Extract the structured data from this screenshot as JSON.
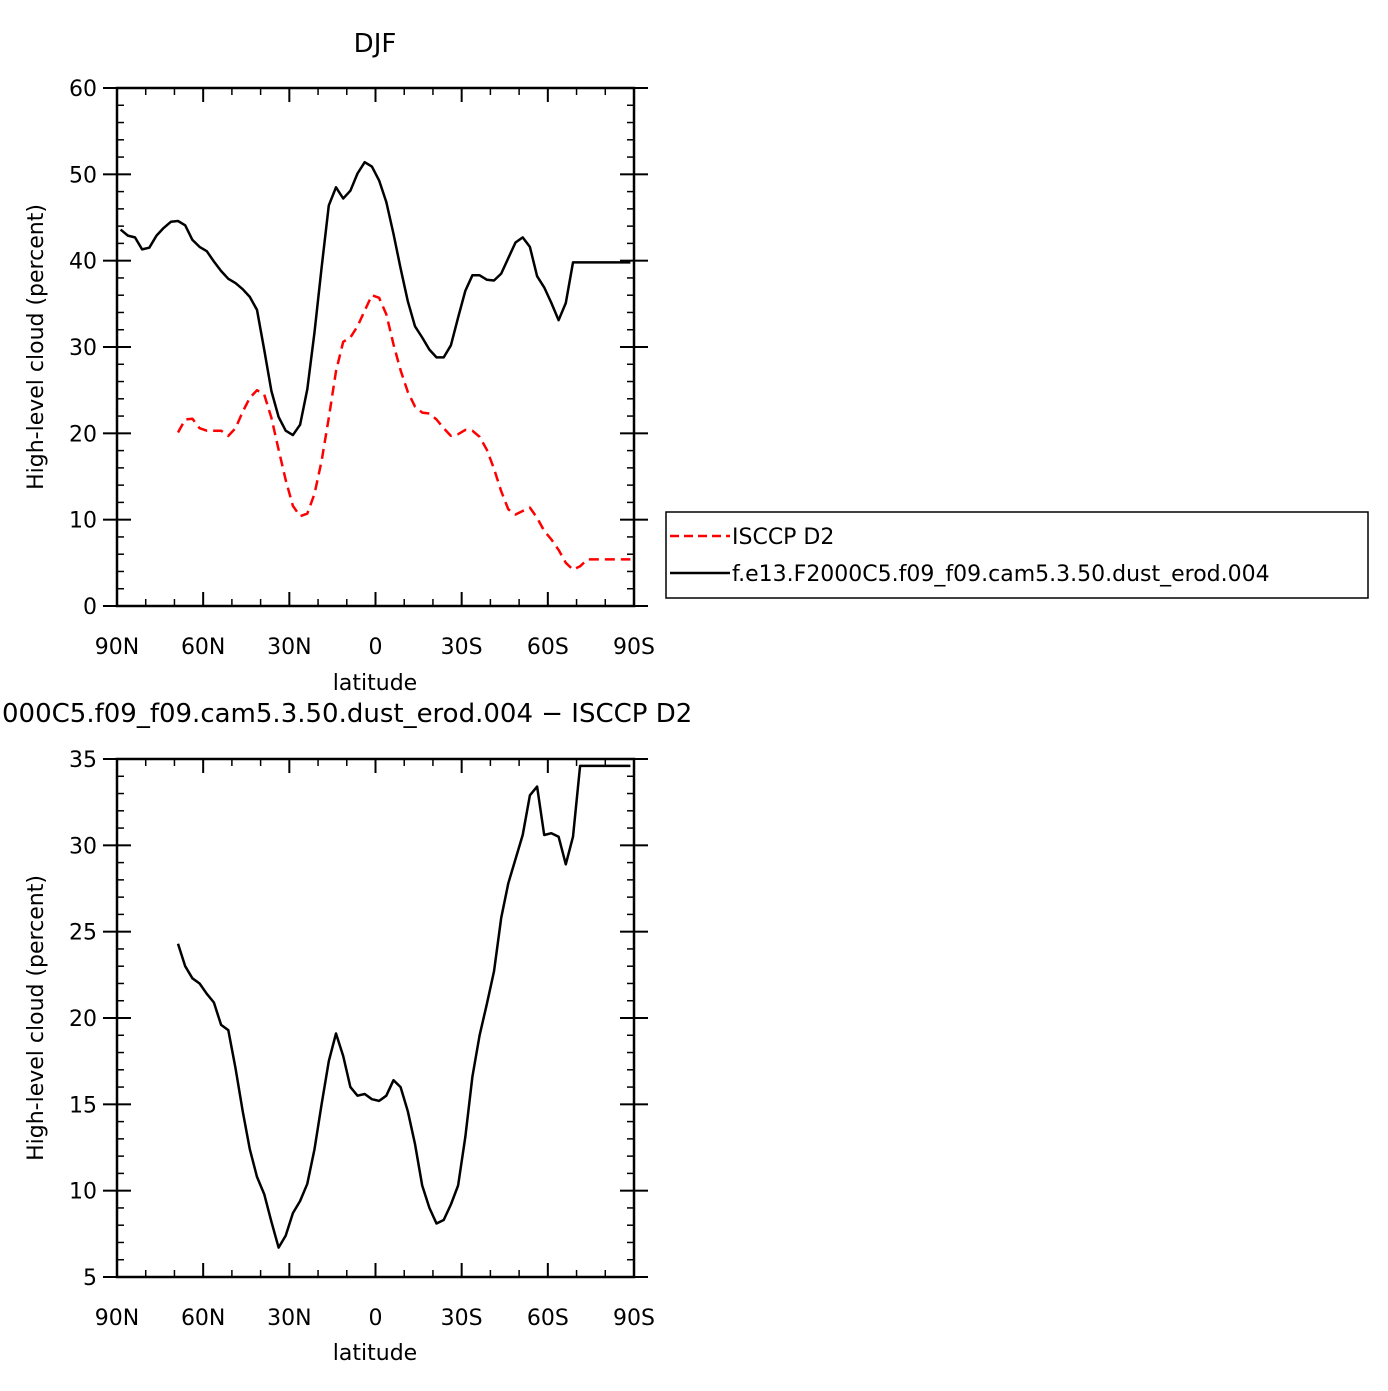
{
  "chart_data": [
    {
      "type": "line",
      "title": "DJF",
      "xlabel": "latitude",
      "ylabel": "High-level cloud (percent)",
      "xlim": [
        -90,
        90
      ],
      "ylim": [
        0,
        60
      ],
      "x_ticks": [
        -90,
        -60,
        -30,
        0,
        30,
        60,
        90
      ],
      "x_tick_labels": [
        "90N",
        "60N",
        "30N",
        "0",
        "30S",
        "60S",
        "90S"
      ],
      "y_ticks": [
        0,
        10,
        20,
        30,
        40,
        50,
        60
      ],
      "y_tick_labels": [
        "0",
        "10",
        "20",
        "30",
        "40",
        "50",
        "60"
      ],
      "legend_position": "right",
      "series": [
        {
          "name": "ISCCP D2",
          "color": "#ff0000",
          "dash": "dashed",
          "x": [
            -68.75,
            -66.25,
            -63.75,
            -61.25,
            -58.75,
            -56.25,
            -53.75,
            -51.25,
            -48.75,
            -46.25,
            -43.75,
            -41.25,
            -38.75,
            -36.25,
            -33.75,
            -31.25,
            -28.75,
            -26.25,
            -23.75,
            -21.25,
            -18.75,
            -16.25,
            -13.75,
            -11.25,
            -8.75,
            -6.25,
            -3.75,
            -1.25,
            1.25,
            3.75,
            6.25,
            8.75,
            11.25,
            13.75,
            16.25,
            18.75,
            21.25,
            23.75,
            26.25,
            28.75,
            31.25,
            33.75,
            36.25,
            38.75,
            41.25,
            43.75,
            46.25,
            48.75,
            51.25,
            53.75,
            56.25,
            58.75,
            61.25,
            63.75,
            66.25,
            68.75,
            71.25,
            73.75,
            76.25,
            78.75,
            81.25,
            83.75,
            86.25,
            88.75
          ],
          "y": [
            20.1,
            21.6,
            21.7,
            20.6,
            20.3,
            20.3,
            20.3,
            19.7,
            20.6,
            22.5,
            24.1,
            25.0,
            24.5,
            21.8,
            18.1,
            14.6,
            11.6,
            10.4,
            10.7,
            13.0,
            16.8,
            21.8,
            27.2,
            30.6,
            31.1,
            32.4,
            34.2,
            36.0,
            35.7,
            33.8,
            30.3,
            27.3,
            24.8,
            23.1,
            22.4,
            22.3,
            21.6,
            20.6,
            19.7,
            19.9,
            20.4,
            20.3,
            19.6,
            18.1,
            15.9,
            13.3,
            11.2,
            10.6,
            11.0,
            11.4,
            10.2,
            8.7,
            7.7,
            6.5,
            5.0,
            4.2,
            4.6,
            5.4,
            5.4,
            5.4,
            5.4,
            5.4,
            5.4,
            5.4
          ]
        },
        {
          "name": "f.e13.F2000C5.f09_f09.cam5.3.50.dust_erod.004",
          "color": "#000000",
          "dash": "solid",
          "x": [
            -88.75,
            -86.25,
            -83.75,
            -81.25,
            -78.75,
            -76.25,
            -73.75,
            -71.25,
            -68.75,
            -66.25,
            -63.75,
            -61.25,
            -58.75,
            -56.25,
            -53.75,
            -51.25,
            -48.75,
            -46.25,
            -43.75,
            -41.25,
            -38.75,
            -36.25,
            -33.75,
            -31.25,
            -28.75,
            -26.25,
            -23.75,
            -21.25,
            -18.75,
            -16.25,
            -13.75,
            -11.25,
            -8.75,
            -6.25,
            -3.75,
            -1.25,
            1.25,
            3.75,
            6.25,
            8.75,
            11.25,
            13.75,
            16.25,
            18.75,
            21.25,
            23.75,
            26.25,
            28.75,
            31.25,
            33.75,
            36.25,
            38.75,
            41.25,
            43.75,
            46.25,
            48.75,
            51.25,
            53.75,
            56.25,
            58.75,
            61.25,
            63.75,
            66.25,
            68.75,
            71.25,
            73.75,
            76.25,
            78.75,
            81.25,
            83.75,
            86.25,
            88.75
          ],
          "y": [
            43.6,
            42.9,
            42.7,
            41.3,
            41.5,
            42.9,
            43.8,
            44.5,
            44.6,
            44.1,
            42.4,
            41.6,
            41.1,
            39.9,
            38.8,
            37.9,
            37.4,
            36.7,
            35.8,
            34.3,
            29.7,
            24.9,
            21.9,
            20.3,
            19.8,
            21.0,
            25.1,
            31.7,
            39.2,
            46.4,
            48.5,
            47.2,
            48.1,
            50.1,
            51.4,
            50.9,
            49.3,
            46.8,
            43.1,
            39.1,
            35.3,
            32.4,
            31.1,
            29.7,
            28.8,
            28.8,
            30.2,
            33.4,
            36.5,
            38.3,
            38.3,
            37.8,
            37.7,
            38.5,
            40.3,
            42.1,
            42.7,
            41.6,
            38.2,
            36.9,
            35.1,
            33.1,
            35.1,
            39.8,
            39.8,
            39.8,
            39.8,
            39.8,
            39.8,
            39.8,
            39.8,
            39.8
          ]
        }
      ]
    },
    {
      "type": "line",
      "title": "000C5.f09_f09.cam5.3.50.dust_erod.004 − ISCCP D2",
      "xlabel": "latitude",
      "ylabel": "High-level cloud (percent)",
      "xlim": [
        -90,
        90
      ],
      "ylim": [
        5,
        35
      ],
      "x_ticks": [
        -90,
        -60,
        -30,
        0,
        30,
        60,
        90
      ],
      "x_tick_labels": [
        "90N",
        "60N",
        "30N",
        "0",
        "30S",
        "60S",
        "90S"
      ],
      "y_ticks": [
        5,
        10,
        15,
        20,
        25,
        30,
        35
      ],
      "y_tick_labels": [
        "5",
        "10",
        "15",
        "20",
        "25",
        "30",
        "35"
      ],
      "series": [
        {
          "color": "#000000",
          "dash": "solid",
          "x": [
            -68.75,
            -66.25,
            -63.75,
            -61.25,
            -58.75,
            -56.25,
            -53.75,
            -51.25,
            -48.75,
            -46.25,
            -43.75,
            -41.25,
            -38.75,
            -36.25,
            -33.75,
            -31.25,
            -28.75,
            -26.25,
            -23.75,
            -21.25,
            -18.75,
            -16.25,
            -13.75,
            -11.25,
            -8.75,
            -6.25,
            -3.75,
            -1.25,
            1.25,
            3.75,
            6.25,
            8.75,
            11.25,
            13.75,
            16.25,
            18.75,
            21.25,
            23.75,
            26.25,
            28.75,
            31.25,
            33.75,
            36.25,
            38.75,
            41.25,
            43.75,
            46.25,
            48.75,
            51.25,
            53.75,
            56.25,
            58.75,
            61.25,
            63.75,
            66.25,
            68.75,
            71.25,
            73.75,
            76.25,
            78.75,
            81.25,
            83.75,
            86.25,
            88.75
          ],
          "y": [
            24.3,
            23.0,
            22.3,
            22.0,
            21.4,
            20.9,
            19.6,
            19.3,
            17.1,
            14.6,
            12.4,
            10.8,
            9.8,
            8.2,
            6.7,
            7.4,
            8.7,
            9.4,
            10.4,
            12.4,
            15.0,
            17.5,
            19.1,
            17.8,
            16.0,
            15.5,
            15.6,
            15.3,
            15.2,
            15.5,
            16.4,
            16.0,
            14.6,
            12.7,
            10.3,
            9.0,
            8.1,
            8.3,
            9.2,
            10.3,
            13.1,
            16.6,
            19.0,
            20.8,
            22.7,
            25.8,
            27.8,
            29.2,
            30.6,
            32.9,
            33.4,
            30.6,
            30.7,
            30.5,
            28.9,
            30.5,
            34.6,
            34.6,
            34.6,
            34.6,
            34.6,
            34.6,
            34.6,
            34.6
          ]
        }
      ]
    }
  ]
}
